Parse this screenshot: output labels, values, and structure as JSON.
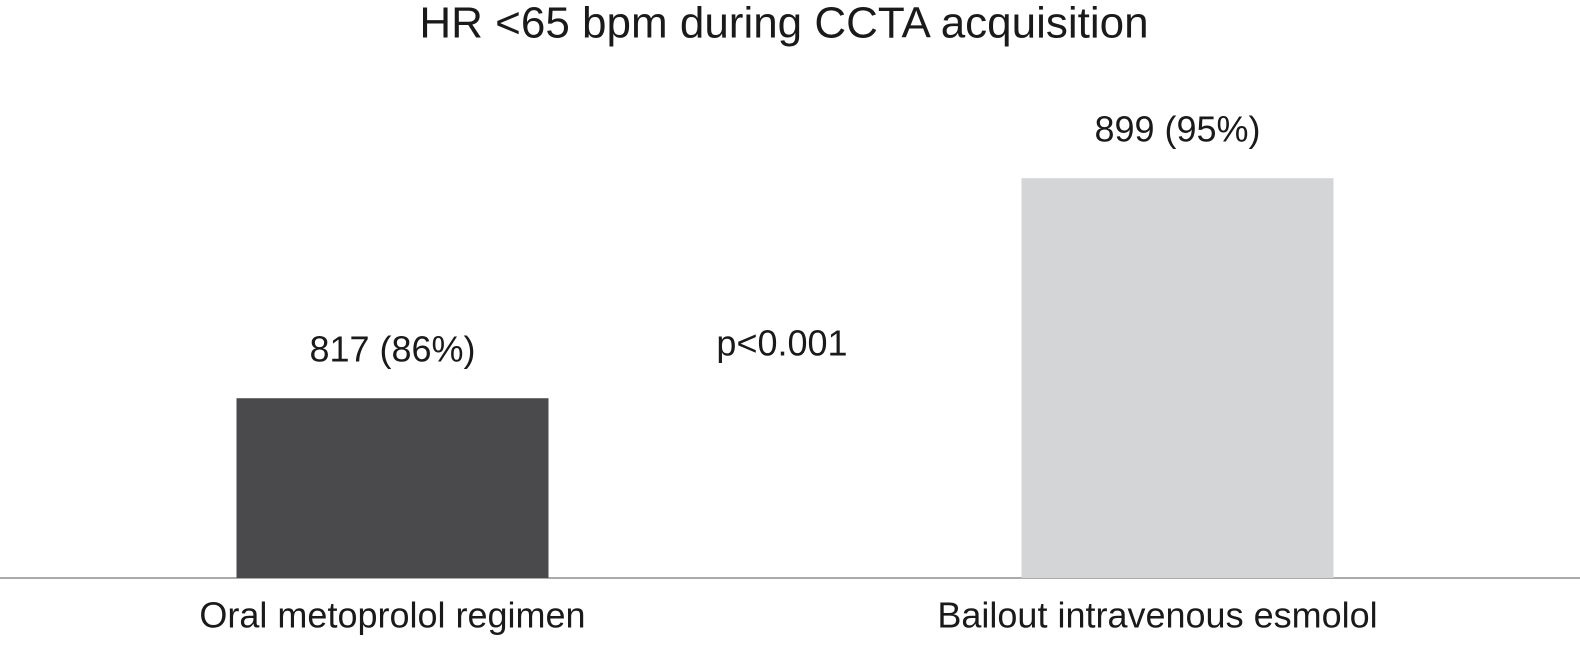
{
  "chart_data": {
    "type": "bar",
    "title": "HR <65 bpm during CCTA acquisition",
    "categories": [
      "Oral metoprolol regimen",
      "Bailout intravenous esmolol"
    ],
    "values": [
      817,
      899
    ],
    "value_labels": [
      "817 (86%)",
      "899 (95%)"
    ],
    "colors": [
      "#4a4a4c",
      "#d4d5d7"
    ],
    "annotations": [
      "p<0.001"
    ],
    "ylim": [
      750,
      930
    ]
  }
}
